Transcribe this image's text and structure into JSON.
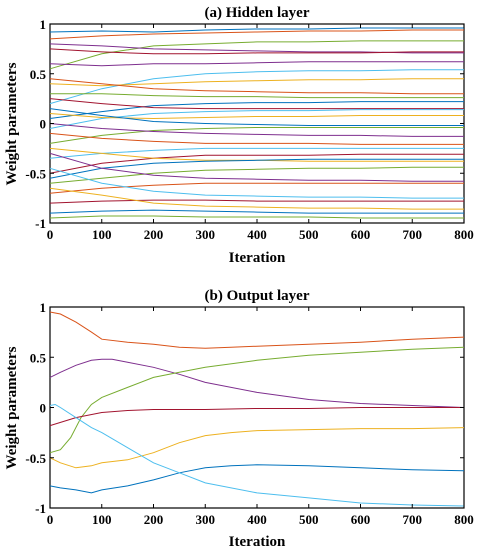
{
  "chart_data": [
    {
      "type": "line",
      "title": "(a) Hidden layer",
      "xlabel": "Iteration",
      "ylabel": "Weight parameters",
      "xlim": [
        0,
        800
      ],
      "ylim": [
        -1,
        1
      ],
      "xticks": [
        "0",
        "100",
        "200",
        "300",
        "400",
        "500",
        "600",
        "700",
        "800"
      ],
      "yticks": [
        "-1",
        "-0.5",
        "0",
        "0.5",
        "1"
      ],
      "grid": false,
      "series": [
        {
          "color": "#0072BD",
          "x": [
            0,
            100,
            200,
            300,
            400,
            500,
            600,
            700,
            800
          ],
          "y": [
            0.92,
            0.93,
            0.92,
            0.94,
            0.95,
            0.95,
            0.96,
            0.96,
            0.96
          ]
        },
        {
          "color": "#D95319",
          "x": [
            0,
            100,
            200,
            300,
            400,
            500,
            600,
            700,
            800
          ],
          "y": [
            0.85,
            0.88,
            0.9,
            0.91,
            0.92,
            0.93,
            0.93,
            0.94,
            0.94
          ]
        },
        {
          "color": "#77AC30",
          "x": [
            0,
            100,
            200,
            300,
            400,
            500,
            600,
            700,
            800
          ],
          "y": [
            0.55,
            0.7,
            0.78,
            0.8,
            0.82,
            0.82,
            0.83,
            0.83,
            0.83
          ]
        },
        {
          "color": "#7E2F8E",
          "x": [
            0,
            100,
            200,
            300,
            400,
            500,
            600,
            700,
            800
          ],
          "y": [
            0.8,
            0.78,
            0.75,
            0.74,
            0.73,
            0.72,
            0.72,
            0.71,
            0.71
          ]
        },
        {
          "color": "#A2142F",
          "x": [
            0,
            100,
            200,
            300,
            400,
            500,
            600,
            700,
            800
          ],
          "y": [
            0.75,
            0.72,
            0.7,
            0.7,
            0.71,
            0.71,
            0.71,
            0.72,
            0.72
          ]
        },
        {
          "color": "#4DBEEE",
          "x": [
            0,
            100,
            200,
            300,
            400,
            500,
            600,
            700,
            800
          ],
          "y": [
            0.2,
            0.35,
            0.45,
            0.5,
            0.52,
            0.53,
            0.53,
            0.54,
            0.54
          ]
        },
        {
          "color": "#EDB120",
          "x": [
            0,
            100,
            200,
            300,
            400,
            500,
            600,
            700,
            800
          ],
          "y": [
            0.4,
            0.38,
            0.4,
            0.42,
            0.43,
            0.44,
            0.44,
            0.45,
            0.45
          ]
        },
        {
          "color": "#7E2F8E",
          "x": [
            0,
            100,
            200,
            300,
            400,
            500,
            600,
            700,
            800
          ],
          "y": [
            0.6,
            0.58,
            0.6,
            0.6,
            0.61,
            0.62,
            0.62,
            0.62,
            0.62
          ]
        },
        {
          "color": "#D95319",
          "x": [
            0,
            100,
            200,
            300,
            400,
            500,
            600,
            700,
            800
          ],
          "y": [
            0.45,
            0.4,
            0.35,
            0.33,
            0.32,
            0.31,
            0.31,
            0.3,
            0.3
          ]
        },
        {
          "color": "#77AC30",
          "x": [
            0,
            100,
            200,
            300,
            400,
            500,
            600,
            700,
            800
          ],
          "y": [
            0.3,
            0.3,
            0.28,
            0.27,
            0.27,
            0.26,
            0.26,
            0.26,
            0.26
          ]
        },
        {
          "color": "#0072BD",
          "x": [
            0,
            100,
            200,
            300,
            400,
            500,
            600,
            700,
            800
          ],
          "y": [
            0.05,
            0.12,
            0.18,
            0.2,
            0.21,
            0.21,
            0.22,
            0.22,
            0.22
          ]
        },
        {
          "color": "#A2142F",
          "x": [
            0,
            100,
            200,
            300,
            400,
            500,
            600,
            700,
            800
          ],
          "y": [
            0.25,
            0.2,
            0.16,
            0.15,
            0.15,
            0.15,
            0.15,
            0.15,
            0.15
          ]
        },
        {
          "color": "#4DBEEE",
          "x": [
            0,
            100,
            200,
            300,
            400,
            500,
            600,
            700,
            800
          ],
          "y": [
            -0.05,
            0.05,
            0.1,
            0.12,
            0.13,
            0.13,
            0.14,
            0.14,
            0.14
          ]
        },
        {
          "color": "#EDB120",
          "x": [
            0,
            100,
            200,
            300,
            400,
            500,
            600,
            700,
            800
          ],
          "y": [
            0.1,
            0.06,
            0.05,
            0.06,
            0.07,
            0.07,
            0.08,
            0.08,
            0.08
          ]
        },
        {
          "color": "#0072BD",
          "x": [
            0,
            100,
            200,
            300,
            400,
            500,
            600,
            700,
            800
          ],
          "y": [
            0.15,
            0.08,
            0.02,
            0.0,
            -0.01,
            -0.02,
            -0.02,
            -0.02,
            -0.02
          ]
        },
        {
          "color": "#77AC30",
          "x": [
            0,
            100,
            200,
            300,
            400,
            500,
            600,
            700,
            800
          ],
          "y": [
            -0.2,
            -0.12,
            -0.07,
            -0.05,
            -0.04,
            -0.04,
            -0.04,
            -0.04,
            -0.04
          ]
        },
        {
          "color": "#7E2F8E",
          "x": [
            0,
            100,
            200,
            300,
            400,
            500,
            600,
            700,
            800
          ],
          "y": [
            0.0,
            -0.05,
            -0.08,
            -0.1,
            -0.11,
            -0.12,
            -0.12,
            -0.13,
            -0.13
          ]
        },
        {
          "color": "#D95319",
          "x": [
            0,
            100,
            200,
            300,
            400,
            500,
            600,
            700,
            800
          ],
          "y": [
            -0.1,
            -0.15,
            -0.18,
            -0.2,
            -0.2,
            -0.2,
            -0.21,
            -0.21,
            -0.21
          ]
        },
        {
          "color": "#4DBEEE",
          "x": [
            0,
            100,
            200,
            300,
            400,
            500,
            600,
            700,
            800
          ],
          "y": [
            -0.35,
            -0.3,
            -0.27,
            -0.25,
            -0.25,
            -0.25,
            -0.25,
            -0.25,
            -0.25
          ]
        },
        {
          "color": "#A2142F",
          "x": [
            0,
            100,
            200,
            300,
            400,
            500,
            600,
            700,
            800
          ],
          "y": [
            -0.5,
            -0.4,
            -0.35,
            -0.32,
            -0.32,
            -0.32,
            -0.31,
            -0.31,
            -0.31
          ]
        },
        {
          "color": "#EDB120",
          "x": [
            0,
            100,
            200,
            300,
            400,
            500,
            600,
            700,
            800
          ],
          "y": [
            -0.25,
            -0.3,
            -0.35,
            -0.37,
            -0.37,
            -0.38,
            -0.38,
            -0.38,
            -0.38
          ]
        },
        {
          "color": "#0072BD",
          "x": [
            0,
            100,
            200,
            300,
            400,
            500,
            600,
            700,
            800
          ],
          "y": [
            -0.55,
            -0.45,
            -0.4,
            -0.38,
            -0.37,
            -0.36,
            -0.36,
            -0.36,
            -0.36
          ]
        },
        {
          "color": "#77AC30",
          "x": [
            0,
            100,
            200,
            300,
            400,
            500,
            600,
            700,
            800
          ],
          "y": [
            -0.6,
            -0.55,
            -0.5,
            -0.47,
            -0.46,
            -0.45,
            -0.45,
            -0.44,
            -0.44
          ]
        },
        {
          "color": "#7E2F8E",
          "x": [
            0,
            100,
            200,
            300,
            400,
            500,
            600,
            700,
            800
          ],
          "y": [
            -0.3,
            -0.45,
            -0.52,
            -0.55,
            -0.56,
            -0.57,
            -0.57,
            -0.58,
            -0.58
          ]
        },
        {
          "color": "#D95319",
          "x": [
            0,
            100,
            200,
            300,
            400,
            500,
            600,
            700,
            800
          ],
          "y": [
            -0.7,
            -0.65,
            -0.62,
            -0.6,
            -0.6,
            -0.6,
            -0.6,
            -0.6,
            -0.6
          ]
        },
        {
          "color": "#4DBEEE",
          "x": [
            0,
            100,
            200,
            300,
            400,
            500,
            600,
            700,
            800
          ],
          "y": [
            -0.45,
            -0.6,
            -0.68,
            -0.72,
            -0.73,
            -0.74,
            -0.74,
            -0.75,
            -0.75
          ]
        },
        {
          "color": "#A2142F",
          "x": [
            0,
            100,
            200,
            300,
            400,
            500,
            600,
            700,
            800
          ],
          "y": [
            -0.8,
            -0.78,
            -0.77,
            -0.77,
            -0.78,
            -0.78,
            -0.78,
            -0.78,
            -0.78
          ]
        },
        {
          "color": "#EDB120",
          "x": [
            0,
            100,
            200,
            300,
            400,
            500,
            600,
            700,
            800
          ],
          "y": [
            -0.65,
            -0.72,
            -0.8,
            -0.83,
            -0.84,
            -0.85,
            -0.85,
            -0.86,
            -0.86
          ]
        },
        {
          "color": "#0072BD",
          "x": [
            0,
            100,
            200,
            300,
            400,
            500,
            600,
            700,
            800
          ],
          "y": [
            -0.9,
            -0.88,
            -0.87,
            -0.88,
            -0.89,
            -0.9,
            -0.9,
            -0.9,
            -0.9
          ]
        },
        {
          "color": "#77AC30",
          "x": [
            0,
            100,
            200,
            300,
            400,
            500,
            600,
            700,
            800
          ],
          "y": [
            -0.95,
            -0.93,
            -0.93,
            -0.94,
            -0.94,
            -0.94,
            -0.95,
            -0.95,
            -0.95
          ]
        }
      ]
    },
    {
      "type": "line",
      "title": "(b) Output layer",
      "xlabel": "Iteration",
      "ylabel": "Weight parameters",
      "xlim": [
        0,
        800
      ],
      "ylim": [
        -1,
        1
      ],
      "xticks": [
        "0",
        "100",
        "200",
        "300",
        "400",
        "500",
        "600",
        "700",
        "800"
      ],
      "yticks": [
        "-1",
        "-0.5",
        "0",
        "0.5",
        "1"
      ],
      "grid": false,
      "series": [
        {
          "color": "#D95319",
          "x": [
            0,
            20,
            50,
            80,
            100,
            150,
            200,
            250,
            300,
            350,
            400,
            500,
            600,
            700,
            800
          ],
          "y": [
            0.95,
            0.93,
            0.85,
            0.75,
            0.68,
            0.65,
            0.63,
            0.6,
            0.59,
            0.6,
            0.61,
            0.63,
            0.65,
            0.68,
            0.7
          ]
        },
        {
          "color": "#7E2F8E",
          "x": [
            0,
            20,
            50,
            80,
            100,
            120,
            150,
            200,
            250,
            300,
            400,
            500,
            600,
            700,
            800
          ],
          "y": [
            0.3,
            0.35,
            0.42,
            0.47,
            0.48,
            0.48,
            0.45,
            0.4,
            0.33,
            0.25,
            0.15,
            0.08,
            0.04,
            0.02,
            0.0
          ]
        },
        {
          "color": "#77AC30",
          "x": [
            0,
            20,
            40,
            60,
            80,
            100,
            150,
            200,
            250,
            300,
            400,
            500,
            600,
            700,
            800
          ],
          "y": [
            -0.45,
            -0.42,
            -0.3,
            -0.1,
            0.03,
            0.1,
            0.2,
            0.3,
            0.35,
            0.4,
            0.47,
            0.52,
            0.55,
            0.58,
            0.6
          ]
        },
        {
          "color": "#A2142F",
          "x": [
            0,
            50,
            100,
            150,
            200,
            300,
            400,
            500,
            600,
            700,
            800
          ],
          "y": [
            -0.18,
            -0.1,
            -0.05,
            -0.03,
            -0.02,
            -0.02,
            -0.01,
            -0.01,
            0.0,
            0.0,
            0.0
          ]
        },
        {
          "color": "#EDB120",
          "x": [
            0,
            20,
            50,
            80,
            100,
            150,
            200,
            250,
            300,
            350,
            400,
            500,
            600,
            700,
            800
          ],
          "y": [
            -0.5,
            -0.55,
            -0.6,
            -0.58,
            -0.55,
            -0.52,
            -0.45,
            -0.35,
            -0.28,
            -0.25,
            -0.23,
            -0.22,
            -0.21,
            -0.21,
            -0.2
          ]
        },
        {
          "color": "#0072BD",
          "x": [
            0,
            20,
            50,
            80,
            100,
            150,
            200,
            250,
            300,
            350,
            400,
            500,
            600,
            700,
            800
          ],
          "y": [
            -0.78,
            -0.8,
            -0.82,
            -0.85,
            -0.82,
            -0.78,
            -0.72,
            -0.65,
            -0.6,
            -0.58,
            -0.57,
            -0.58,
            -0.6,
            -0.62,
            -0.63
          ]
        },
        {
          "color": "#4DBEEE",
          "x": [
            0,
            10,
            20,
            50,
            80,
            100,
            150,
            200,
            250,
            300,
            400,
            500,
            600,
            700,
            800
          ],
          "y": [
            0.02,
            0.03,
            0.0,
            -0.1,
            -0.2,
            -0.25,
            -0.4,
            -0.55,
            -0.65,
            -0.75,
            -0.85,
            -0.9,
            -0.95,
            -0.97,
            -0.98
          ]
        }
      ]
    }
  ]
}
